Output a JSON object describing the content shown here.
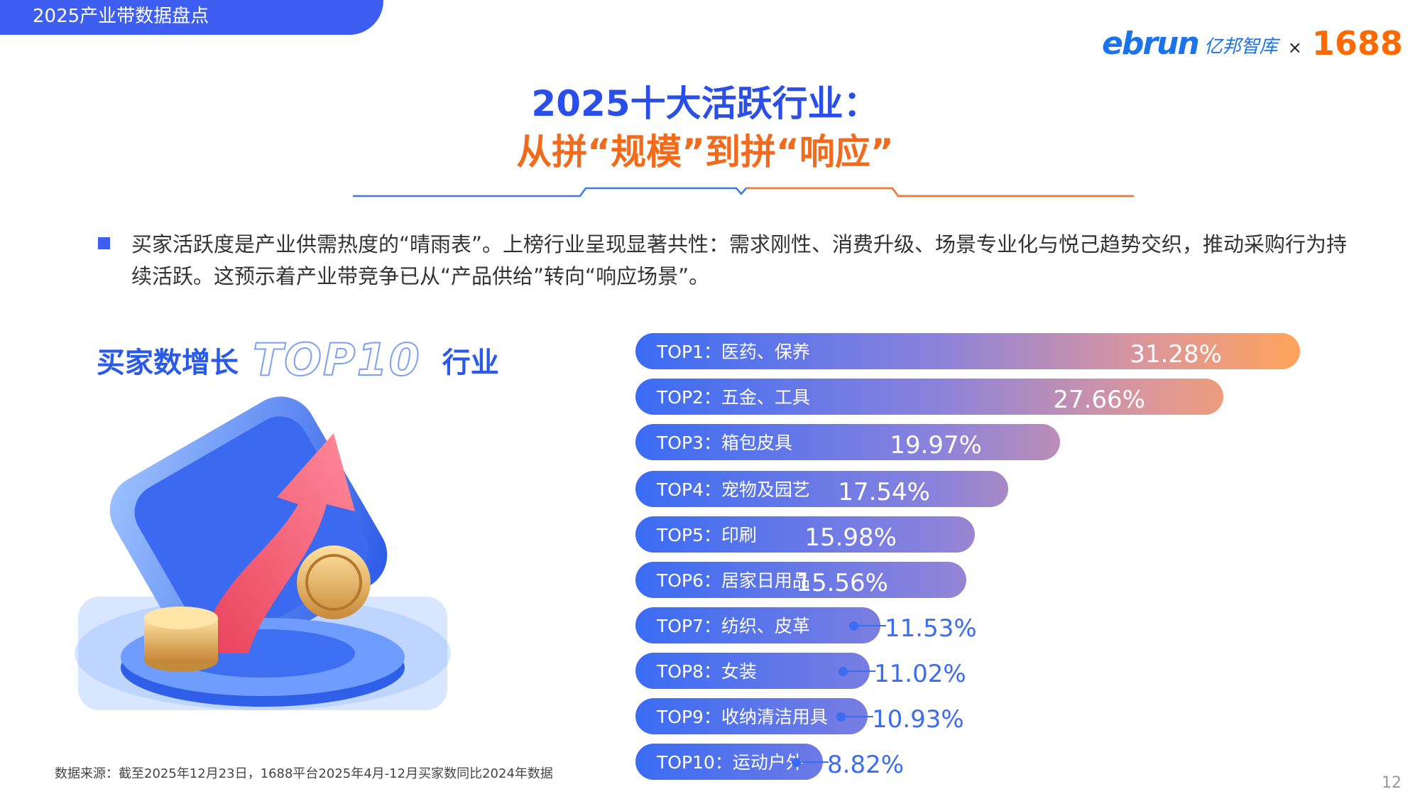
{
  "header": {
    "tab_label": "2025产业带数据盘点",
    "logo": {
      "ebrun": "ebrun",
      "ebrun_cn": "亿邦智库",
      "times": "×",
      "partner": "1688"
    }
  },
  "title": {
    "line1": "2025十大活跃行业：",
    "line2": "从拼“规模”到拼“响应”"
  },
  "intro": "买家活跃度是产业供需热度的“晴雨表”。上榜行业呈现显著共性：需求刚性、消费升级、场景专业化与悦己趋势交织，推动采购行为持续活跃。这预示着产业带竞争已从“产品供给”转向“响应场景”。",
  "left": {
    "heading_pre": "买家数增长",
    "heading_top": "TOP10",
    "heading_post": "行业",
    "source": "数据来源：截至2025年12月23日，1688平台2025年4月-12月买家数同比2024年数据"
  },
  "page_number": "12",
  "colors": {
    "blue": "#3a6cf4",
    "orange": "#ffa35c",
    "title_orange": "#f26a1b"
  },
  "chart_data": {
    "type": "bar",
    "orientation": "horizontal",
    "title": "买家数增长TOP10行业",
    "unit": "%",
    "categories": [
      "TOP1：医药、保养",
      "TOP2：五金、工具",
      "TOP3：箱包皮具",
      "TOP4：宠物及园艺",
      "TOP5：印刷",
      "TOP6：居家日用品",
      "TOP7：纺织、皮革",
      "TOP8：女装",
      "TOP9：收纳清洁用具",
      "TOP10：运动户外"
    ],
    "values": [
      31.28,
      27.66,
      19.97,
      17.54,
      15.98,
      15.56,
      11.53,
      11.02,
      10.93,
      8.82
    ],
    "labels": [
      "31.28%",
      "27.66%",
      "19.97%",
      "17.54%",
      "15.98%",
      "15.56%",
      "11.53%",
      "11.02%",
      "10.93%",
      "8.82%"
    ]
  }
}
